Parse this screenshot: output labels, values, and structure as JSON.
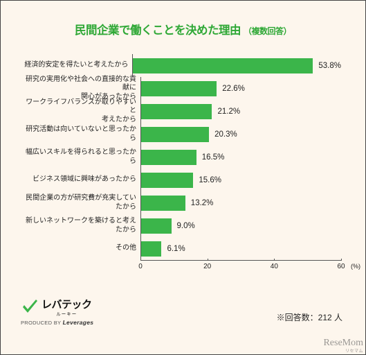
{
  "title": {
    "main": "民間企業で働くことを決めた理由",
    "sub": "（複数回答）",
    "color": "#2fa836"
  },
  "chart": {
    "type": "bar",
    "xmax": 60,
    "xtick_step": 20,
    "xunit": "(%)",
    "bar_color": "#3bb54a",
    "axis_color": "#555555",
    "text_color": "#222222",
    "bg_color": "#fdf6ed",
    "categories": [
      "経済的安定を得たいと考えたから",
      "研究の実用化や社会への直接的な貢献に\n関心があったから",
      "ワークライフバランスが取りやすいと\n考えたから",
      "研究活動は向いていないと思ったから",
      "幅広いスキルを得られると思ったから",
      "ビジネス領域に興味があったから",
      "民間企業の方が研究費が充実していたから",
      "新しいネットワークを築けると考えたから",
      "その他"
    ],
    "values": [
      53.8,
      22.6,
      21.2,
      20.3,
      16.5,
      15.6,
      13.2,
      9.0,
      6.1
    ]
  },
  "respondents": "※回答数：212 人",
  "logo": {
    "big": "レバテック",
    "small": "ルーキー",
    "produced_prefix": "PRODUCED BY ",
    "produced_brand": "Leverages",
    "check_color": "#3bb54a"
  },
  "watermark": {
    "main": "ReseMom",
    "sub": "リセマム"
  }
}
